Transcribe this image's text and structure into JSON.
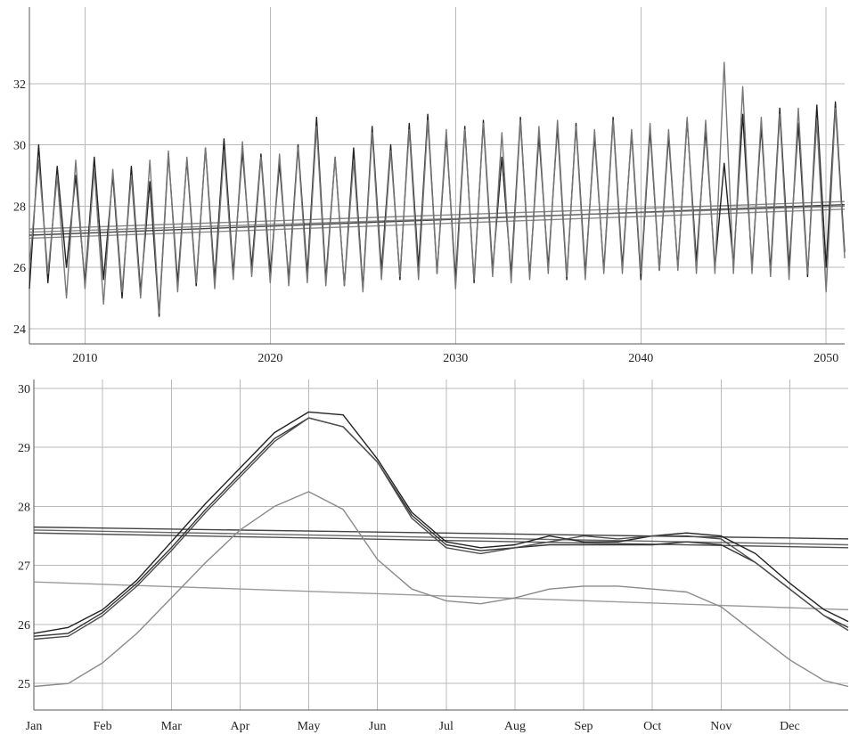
{
  "chart_data": [
    {
      "type": "line",
      "title": "",
      "xlabel": "",
      "ylabel": "",
      "xlim": [
        2007,
        2051
      ],
      "ylim": [
        23.5,
        34.5
      ],
      "xticks": [
        "2010",
        "2020",
        "2030",
        "2040",
        "2050"
      ],
      "xtick_values": [
        2010,
        2020,
        2030,
        2040,
        2050
      ],
      "yticks": [
        "24",
        "26",
        "28",
        "30",
        "32"
      ],
      "ytick_values": [
        24,
        26,
        28,
        30,
        32
      ],
      "grid": true,
      "colors": [
        "#222222",
        "#777777"
      ],
      "series": [
        {
          "x": [
            2007.0,
            2007.5,
            2008.0,
            2008.5,
            2009.0,
            2009.5,
            2010.0,
            2010.5,
            2011.0,
            2011.5,
            2012.0,
            2012.5,
            2013.0,
            2013.5,
            2014.0,
            2014.5,
            2015.0,
            2015.5,
            2016.0,
            2016.5,
            2017.0,
            2017.5,
            2018.0,
            2018.5,
            2019.0,
            2019.5,
            2020.0,
            2020.5,
            2021.0,
            2021.5,
            2022.0,
            2022.5,
            2023.0,
            2023.5,
            2024.0,
            2024.5,
            2025.0,
            2025.5,
            2026.0,
            2026.5,
            2027.0,
            2027.5,
            2028.0,
            2028.5,
            2029.0,
            2029.5,
            2030.0,
            2030.5,
            2031.0,
            2031.5,
            2032.0,
            2032.5,
            2033.0,
            2033.5,
            2034.0,
            2034.5,
            2035.0,
            2035.5,
            2036.0,
            2036.5,
            2037.0,
            2037.5,
            2038.0,
            2038.5,
            2039.0,
            2039.5,
            2040.0,
            2040.5,
            2041.0,
            2041.5,
            2042.0,
            2042.5,
            2043.0,
            2043.5,
            2044.0,
            2044.5,
            2045.0,
            2045.5,
            2046.0,
            2046.5,
            2047.0,
            2047.5,
            2048.0,
            2048.5,
            2049.0,
            2049.5,
            2050.0,
            2050.5,
            2051.0
          ],
          "y": [
            25.3,
            30.0,
            25.5,
            29.3,
            26.0,
            29.0,
            25.5,
            29.6,
            25.6,
            29.0,
            25.0,
            29.3,
            25.2,
            28.8,
            24.4,
            29.7,
            25.5,
            29.5,
            25.4,
            29.9,
            25.6,
            30.2,
            25.8,
            29.8,
            26.0,
            29.7,
            25.8,
            29.4,
            25.6,
            30.0,
            25.8,
            30.9,
            25.6,
            29.6,
            25.4,
            29.9,
            25.3,
            30.6,
            25.9,
            30.0,
            25.6,
            30.7,
            26.0,
            31.0,
            25.8,
            30.3,
            25.6,
            30.6,
            25.5,
            30.8,
            25.9,
            29.6,
            25.8,
            30.9,
            25.7,
            30.3,
            26.0,
            30.6,
            25.6,
            30.7,
            25.8,
            30.3,
            25.9,
            30.9,
            26.0,
            30.4,
            25.6,
            30.5,
            25.9,
            30.3,
            26.0,
            30.8,
            26.2,
            30.5,
            26.0,
            29.4,
            26.1,
            31.0,
            26.0,
            30.6,
            25.9,
            31.2,
            26.0,
            30.7,
            25.7,
            31.3,
            26.0,
            31.4,
            26.5
          ]
        },
        {
          "x": [
            2007.0,
            2007.5,
            2008.0,
            2008.5,
            2009.0,
            2009.5,
            2010.0,
            2010.5,
            2011.0,
            2011.5,
            2012.0,
            2012.5,
            2013.0,
            2013.5,
            2014.0,
            2014.5,
            2015.0,
            2015.5,
            2016.0,
            2016.5,
            2017.0,
            2017.5,
            2018.0,
            2018.5,
            2019.0,
            2019.5,
            2020.0,
            2020.5,
            2021.0,
            2021.5,
            2022.0,
            2022.5,
            2023.0,
            2023.5,
            2024.0,
            2024.5,
            2025.0,
            2025.5,
            2026.0,
            2026.5,
            2027.0,
            2027.5,
            2028.0,
            2028.5,
            2029.0,
            2029.5,
            2030.0,
            2030.5,
            2031.0,
            2031.5,
            2032.0,
            2032.5,
            2033.0,
            2033.5,
            2034.0,
            2034.5,
            2035.0,
            2035.5,
            2036.0,
            2036.5,
            2037.0,
            2037.5,
            2038.0,
            2038.5,
            2039.0,
            2039.5,
            2040.0,
            2040.5,
            2041.0,
            2041.5,
            2042.0,
            2042.5,
            2043.0,
            2043.5,
            2044.0,
            2044.5,
            2045.0,
            2045.5,
            2046.0,
            2046.5,
            2047.0,
            2047.5,
            2048.0,
            2048.5,
            2049.0,
            2049.5,
            2050.0,
            2050.5,
            2051.0
          ],
          "y": [
            26.0,
            29.5,
            25.8,
            29.0,
            25.0,
            29.5,
            25.3,
            29.2,
            24.8,
            29.2,
            25.2,
            29.0,
            25.0,
            29.5,
            24.5,
            29.8,
            25.2,
            29.6,
            25.5,
            29.9,
            25.3,
            29.8,
            25.6,
            30.1,
            25.7,
            29.6,
            25.5,
            29.7,
            25.4,
            29.9,
            25.5,
            30.6,
            25.4,
            29.6,
            25.4,
            29.5,
            25.2,
            30.4,
            25.6,
            29.8,
            25.7,
            30.5,
            25.6,
            30.8,
            25.8,
            30.5,
            25.3,
            30.5,
            25.6,
            30.7,
            25.7,
            30.4,
            25.5,
            30.8,
            25.6,
            30.6,
            25.8,
            30.8,
            25.7,
            30.6,
            25.6,
            30.5,
            25.8,
            30.8,
            25.8,
            30.5,
            25.8,
            30.7,
            25.9,
            30.5,
            25.9,
            30.9,
            25.8,
            30.8,
            25.8,
            32.7,
            25.8,
            31.9,
            25.8,
            30.9,
            25.7,
            31.0,
            25.6,
            31.2,
            25.8,
            30.8,
            25.2,
            31.2,
            26.3
          ]
        }
      ],
      "trend_lines": [
        {
          "x": [
            2007,
            2051
          ],
          "y": [
            27.05,
            28.05
          ]
        },
        {
          "x": [
            2007,
            2051
          ],
          "y": [
            27.15,
            28.0
          ]
        },
        {
          "x": [
            2007,
            2051
          ],
          "y": [
            27.25,
            28.15
          ]
        },
        {
          "x": [
            2007,
            2051
          ],
          "y": [
            26.95,
            27.9
          ]
        }
      ]
    },
    {
      "type": "line",
      "title": "",
      "xlabel": "",
      "ylabel": "",
      "xlim": [
        0,
        11.85
      ],
      "ylim": [
        24.55,
        30.15
      ],
      "xticks": [
        "Jan",
        "Feb",
        "Mar",
        "Apr",
        "May",
        "Jun",
        "Jul",
        "Aug",
        "Sep",
        "Oct",
        "Nov",
        "Dec"
      ],
      "xtick_values": [
        0,
        1,
        2,
        3,
        4,
        5,
        6,
        7,
        8,
        9,
        10,
        11
      ],
      "yticks": [
        "25",
        "26",
        "27",
        "28",
        "29",
        "30"
      ],
      "ytick_values": [
        25,
        26,
        27,
        28,
        29,
        30
      ],
      "grid": true,
      "colors": [
        "#222222",
        "#333333",
        "#4d4d4d",
        "#8a8a8a"
      ],
      "series": [
        {
          "x": [
            0,
            0.5,
            1,
            1.5,
            2,
            2.5,
            3,
            3.5,
            4,
            4.5,
            5,
            5.5,
            6,
            6.5,
            7,
            7.5,
            8,
            8.5,
            9,
            9.5,
            10,
            10.5,
            11,
            11.5,
            11.85
          ],
          "y": [
            25.85,
            25.95,
            26.25,
            26.75,
            27.4,
            28.05,
            28.65,
            29.25,
            29.6,
            29.55,
            28.8,
            27.9,
            27.4,
            27.3,
            27.35,
            27.5,
            27.4,
            27.4,
            27.5,
            27.55,
            27.5,
            27.2,
            26.7,
            26.25,
            26.05
          ]
        },
        {
          "x": [
            0,
            0.5,
            1,
            1.5,
            2,
            2.5,
            3,
            3.5,
            4,
            4.5,
            5,
            5.5,
            6,
            6.5,
            7,
            7.5,
            8,
            8.5,
            9,
            9.5,
            10,
            10.5,
            11,
            11.5,
            11.85
          ],
          "y": [
            25.8,
            25.85,
            26.2,
            26.7,
            27.3,
            27.95,
            28.55,
            29.15,
            29.5,
            29.35,
            28.75,
            27.85,
            27.35,
            27.25,
            27.3,
            27.35,
            27.35,
            27.35,
            27.35,
            27.4,
            27.35,
            27.05,
            26.6,
            26.15,
            25.95
          ]
        },
        {
          "x": [
            0,
            0.5,
            1,
            1.5,
            2,
            2.5,
            3,
            3.5,
            4,
            4.5,
            5,
            5.5,
            6,
            6.5,
            7,
            7.5,
            8,
            8.5,
            9,
            9.5,
            10,
            10.5,
            11,
            11.5,
            11.85
          ],
          "y": [
            25.75,
            25.8,
            26.15,
            26.65,
            27.25,
            27.9,
            28.5,
            29.1,
            29.5,
            29.35,
            28.75,
            27.8,
            27.3,
            27.2,
            27.3,
            27.4,
            27.5,
            27.45,
            27.5,
            27.5,
            27.45,
            27.05,
            26.6,
            26.15,
            25.9
          ]
        },
        {
          "x": [
            0,
            0.5,
            1,
            1.5,
            2,
            2.5,
            3,
            3.5,
            4,
            4.5,
            5,
            5.5,
            6,
            6.5,
            7,
            7.5,
            8,
            8.5,
            9,
            9.5,
            10,
            10.5,
            11,
            11.5,
            11.85
          ],
          "y": [
            24.95,
            25.0,
            25.35,
            25.85,
            26.45,
            27.05,
            27.6,
            28.0,
            28.25,
            27.95,
            27.1,
            26.6,
            26.4,
            26.35,
            26.45,
            26.6,
            26.65,
            26.65,
            26.6,
            26.55,
            26.3,
            25.85,
            25.4,
            25.05,
            24.95
          ]
        }
      ],
      "trend_lines": [
        {
          "x": [
            0,
            11.85
          ],
          "y": [
            27.65,
            27.45
          ]
        },
        {
          "x": [
            0,
            11.85
          ],
          "y": [
            27.55,
            27.3
          ]
        },
        {
          "x": [
            0,
            11.85
          ],
          "y": [
            27.6,
            27.35
          ]
        },
        {
          "x": [
            0,
            11.85
          ],
          "y": [
            26.72,
            26.25
          ]
        }
      ]
    }
  ]
}
